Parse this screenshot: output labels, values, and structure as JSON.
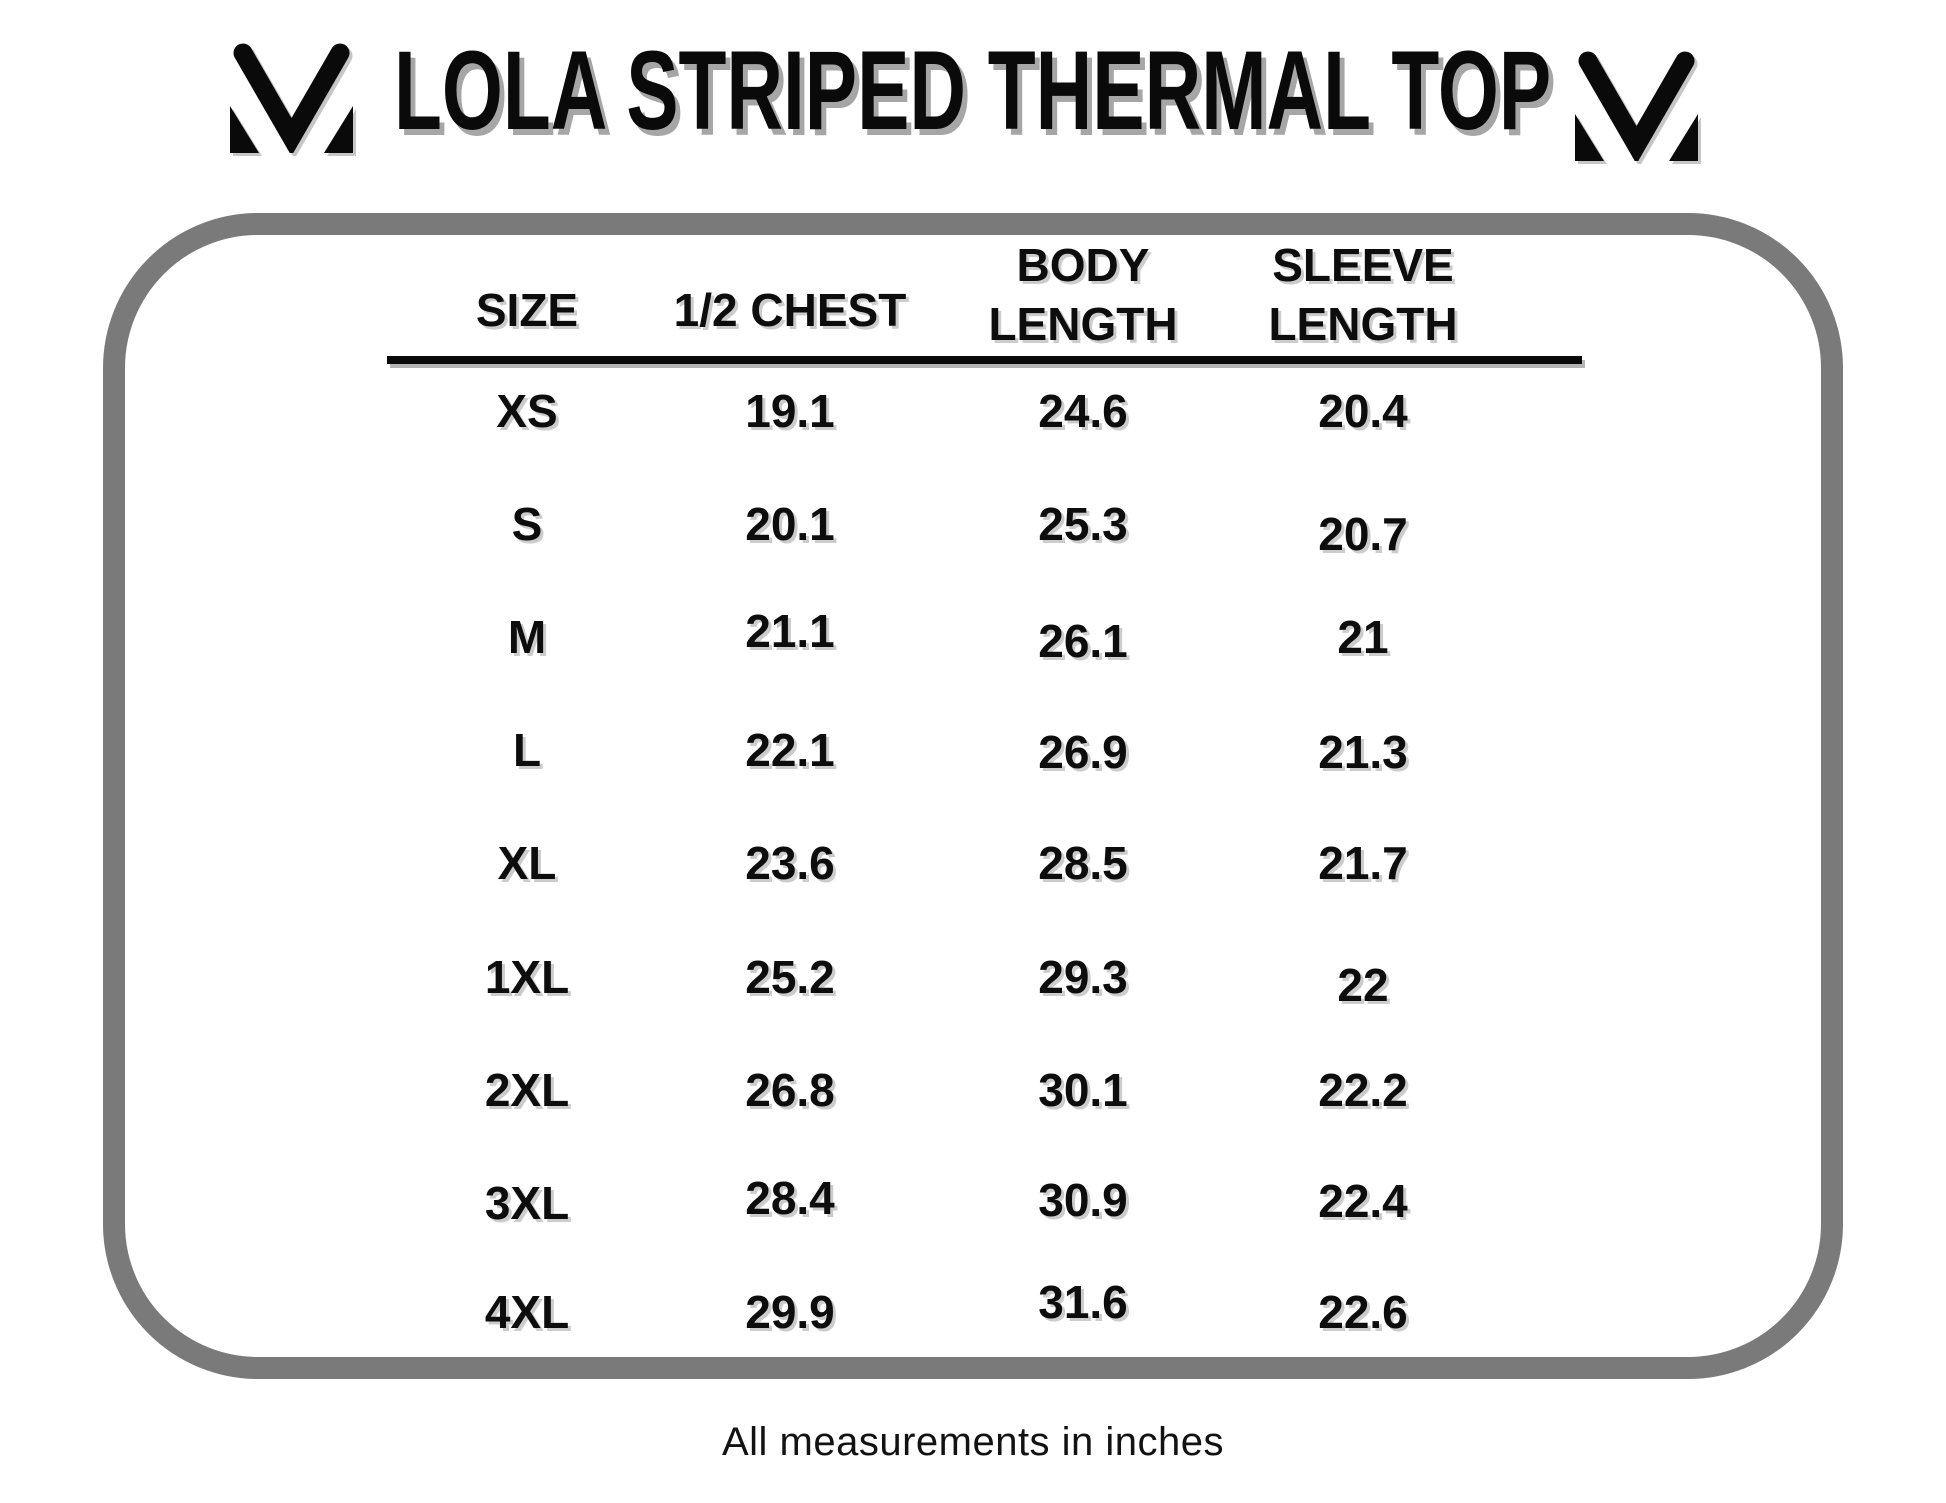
{
  "header": {
    "title": "LOLA STRIPED THERMAL TOP",
    "logo_left": "mv-monogram",
    "logo_right": "mv-monogram"
  },
  "footnote": "All measurements in inches",
  "colors": {
    "border_gray": "#7a7a7a",
    "title_shadow_gray": "#a6a6a6",
    "text_shadow_gray": "#cccccc",
    "text_black": "#0a0a0a"
  },
  "chart_data": {
    "type": "table",
    "title": "LOLA STRIPED THERMAL TOP",
    "units": "inches",
    "footnote": "All measurements in inches",
    "columns": [
      {
        "label": "SIZE",
        "lines": [
          "SIZE"
        ]
      },
      {
        "label": "1/2 CHEST",
        "lines": [
          "1/2 CHEST"
        ]
      },
      {
        "label": "BODY LENGTH",
        "lines": [
          "BODY",
          "LENGTH"
        ]
      },
      {
        "label": "SLEEVE LENGTH",
        "lines": [
          "SLEEVE",
          "LENGTH"
        ]
      }
    ],
    "rows": [
      [
        "XS",
        "19.1",
        "24.6",
        "20.4"
      ],
      [
        "S",
        "20.1",
        "25.3",
        "20.7"
      ],
      [
        "M",
        "21.1",
        "26.1",
        "21"
      ],
      [
        "L",
        "22.1",
        "26.9",
        "21.3"
      ],
      [
        "XL",
        "23.6",
        "28.5",
        "21.7"
      ],
      [
        "1XL",
        "25.2",
        "29.3",
        "22"
      ],
      [
        "2XL",
        "26.8",
        "30.1",
        "22.2"
      ],
      [
        "3XL",
        "28.4",
        "30.9",
        "22.4"
      ],
      [
        "4XL",
        "29.9",
        "31.6",
        "22.6"
      ]
    ]
  }
}
